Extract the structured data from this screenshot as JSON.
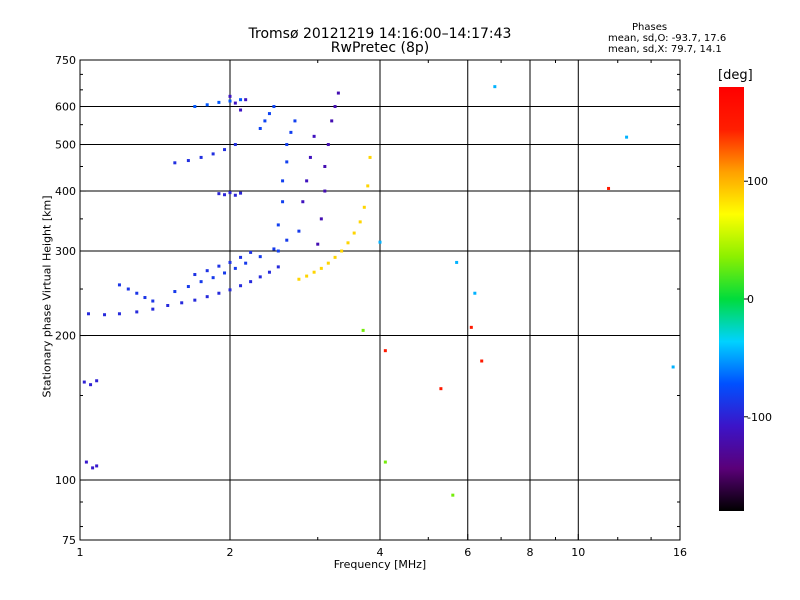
{
  "title_line1": "Tromsø 20121219 14:16:00–14:17:43",
  "title_line2": "RwPretec (8p)",
  "phase_box": {
    "heading": "Phases",
    "line1": "mean, sd,O: -93.7, 17.6",
    "line2": "mean, sd,X: 79.7, 14.1"
  },
  "chart_data": {
    "type": "scatter",
    "xlabel": "Frequency [MHz]",
    "ylabel": "Stationary phase Virtual Height [km]",
    "x_scale": "log",
    "y_scale": "log",
    "xlim": [
      1,
      16
    ],
    "ylim": [
      75,
      750
    ],
    "x_ticks": [
      1,
      2,
      4,
      6,
      8,
      10,
      16
    ],
    "x_tick_labels": [
      "1",
      "2",
      "4",
      "6",
      "8",
      "10",
      "16"
    ],
    "y_ticks": [
      75,
      100,
      200,
      300,
      400,
      500,
      600,
      750
    ],
    "y_tick_labels": [
      "75",
      "100",
      "200",
      "300",
      "400",
      "500",
      "600",
      "750"
    ],
    "grid": true,
    "colorbar": {
      "unit": "[deg]",
      "range": [
        -180,
        180
      ],
      "tick_values": [
        100,
        0,
        -100
      ],
      "tick_labels": [
        "100",
        "0",
        "-100"
      ],
      "colors": [
        "#000000",
        "#5a0078",
        "#3c14c8",
        "#0050ff",
        "#00d2ff",
        "#00dc3c",
        "#8cf000",
        "#ffff00",
        "#ffa000",
        "#ff1e00",
        "#ff0000"
      ]
    },
    "series": [
      {
        "phase": -95,
        "x": [
          1.04,
          1.12,
          1.2,
          1.3,
          1.4,
          1.5,
          1.6,
          1.7,
          1.8,
          1.9,
          2.0,
          2.1,
          2.2,
          2.3,
          2.4,
          2.5
        ],
        "y": [
          222,
          221,
          222,
          224,
          227,
          231,
          234,
          237,
          241,
          245,
          249,
          254,
          259,
          265,
          271,
          278
        ]
      },
      {
        "phase": -88,
        "x": [
          1.2,
          1.25,
          1.3,
          1.35,
          1.4
        ],
        "y": [
          255,
          250,
          245,
          240,
          236
        ]
      },
      {
        "phase": -85,
        "x": [
          1.55,
          1.65,
          1.75,
          1.85,
          1.95,
          2.05,
          2.15,
          2.3,
          2.45,
          2.6,
          2.75
        ],
        "y": [
          247,
          253,
          259,
          264,
          270,
          276,
          283,
          292,
          303,
          316,
          330
        ]
      },
      {
        "phase": -90,
        "x": [
          1.7,
          1.8,
          1.9,
          2.0,
          2.1,
          2.2
        ],
        "y": [
          268,
          273,
          279,
          284,
          291,
          298
        ]
      },
      {
        "phase": -92,
        "x": [
          1.55,
          1.65,
          1.75,
          1.85,
          1.95,
          2.05
        ],
        "y": [
          458,
          463,
          470,
          478,
          488,
          500
        ]
      },
      {
        "phase": -70,
        "x": [
          1.7,
          1.8,
          1.9,
          2.0,
          2.1
        ],
        "y": [
          600,
          605,
          612,
          616,
          620
        ]
      },
      {
        "phase": -98,
        "x": [
          1.9,
          1.95,
          2.0,
          2.05,
          2.1
        ],
        "y": [
          395,
          393,
          397,
          392,
          396
        ]
      },
      {
        "phase": -110,
        "x": [
          2.0,
          2.05,
          2.1,
          2.15
        ],
        "y": [
          630,
          610,
          590,
          620
        ]
      },
      {
        "phase": -82,
        "x": [
          2.5,
          2.5,
          2.55,
          2.55,
          2.6,
          2.6,
          2.65,
          2.7
        ],
        "y": [
          300,
          340,
          380,
          420,
          460,
          500,
          530,
          560
        ]
      },
      {
        "phase": -80,
        "x": [
          2.3,
          2.35,
          2.4,
          2.45
        ],
        "y": [
          540,
          560,
          580,
          600
        ]
      },
      {
        "phase": -118,
        "x": [
          3.0,
          3.05,
          3.1,
          3.1,
          3.15,
          3.2,
          3.25,
          3.3
        ],
        "y": [
          310,
          350,
          400,
          450,
          500,
          560,
          600,
          640
        ]
      },
      {
        "phase": -112,
        "x": [
          2.8,
          2.85,
          2.9,
          2.95
        ],
        "y": [
          380,
          420,
          470,
          520
        ]
      },
      {
        "phase": 88,
        "x": [
          2.75,
          2.85,
          2.95,
          3.05,
          3.15,
          3.25,
          3.35,
          3.45,
          3.55,
          3.65,
          3.72,
          3.78,
          3.82
        ],
        "y": [
          262,
          266,
          271,
          276,
          283,
          291,
          300,
          312,
          327,
          345,
          370,
          410,
          470
        ]
      },
      {
        "phase": -100,
        "x": [
          1.02,
          1.05,
          1.08
        ],
        "y": [
          160,
          158,
          161
        ]
      },
      {
        "phase": -105,
        "x": [
          1.03,
          1.06,
          1.08
        ],
        "y": [
          109,
          106,
          107
        ]
      },
      {
        "phase": -45,
        "x": [
          4.0,
          5.7,
          6.2,
          6.8,
          12.5,
          15.5
        ],
        "y": [
          313,
          284,
          245,
          660,
          518,
          172
        ]
      },
      {
        "phase": 150,
        "x": [
          4.1,
          5.3,
          6.1,
          6.4,
          11.5
        ],
        "y": [
          186,
          155,
          208,
          177,
          405
        ]
      },
      {
        "phase": 30,
        "x": [
          4.1,
          3.7,
          5.6
        ],
        "y": [
          109,
          205,
          93
        ]
      }
    ]
  }
}
